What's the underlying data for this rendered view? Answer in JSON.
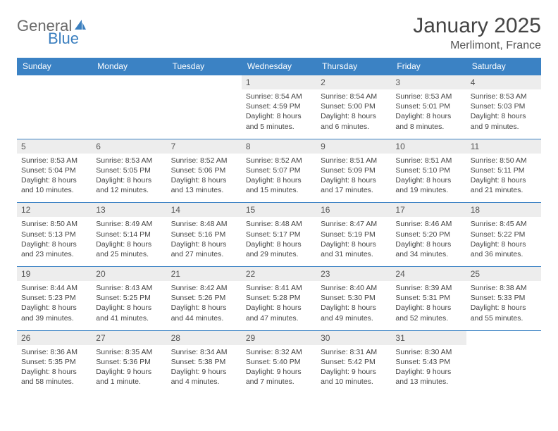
{
  "brand": {
    "part1": "General",
    "part2": "Blue"
  },
  "title": "January 2025",
  "location": "Merlimont, France",
  "colors": {
    "header_bg": "#3b82c4",
    "header_text": "#ffffff",
    "daynum_bg": "#ededed",
    "row_border": "#3b82c4",
    "logo_gray": "#6a6a6a",
    "logo_blue": "#3b7fbf"
  },
  "weekdays": [
    "Sunday",
    "Monday",
    "Tuesday",
    "Wednesday",
    "Thursday",
    "Friday",
    "Saturday"
  ],
  "weeks": [
    [
      null,
      null,
      null,
      {
        "n": "1",
        "sr": "Sunrise: 8:54 AM",
        "ss": "Sunset: 4:59 PM",
        "d1": "Daylight: 8 hours",
        "d2": "and 5 minutes."
      },
      {
        "n": "2",
        "sr": "Sunrise: 8:54 AM",
        "ss": "Sunset: 5:00 PM",
        "d1": "Daylight: 8 hours",
        "d2": "and 6 minutes."
      },
      {
        "n": "3",
        "sr": "Sunrise: 8:53 AM",
        "ss": "Sunset: 5:01 PM",
        "d1": "Daylight: 8 hours",
        "d2": "and 8 minutes."
      },
      {
        "n": "4",
        "sr": "Sunrise: 8:53 AM",
        "ss": "Sunset: 5:03 PM",
        "d1": "Daylight: 8 hours",
        "d2": "and 9 minutes."
      }
    ],
    [
      {
        "n": "5",
        "sr": "Sunrise: 8:53 AM",
        "ss": "Sunset: 5:04 PM",
        "d1": "Daylight: 8 hours",
        "d2": "and 10 minutes."
      },
      {
        "n": "6",
        "sr": "Sunrise: 8:53 AM",
        "ss": "Sunset: 5:05 PM",
        "d1": "Daylight: 8 hours",
        "d2": "and 12 minutes."
      },
      {
        "n": "7",
        "sr": "Sunrise: 8:52 AM",
        "ss": "Sunset: 5:06 PM",
        "d1": "Daylight: 8 hours",
        "d2": "and 13 minutes."
      },
      {
        "n": "8",
        "sr": "Sunrise: 8:52 AM",
        "ss": "Sunset: 5:07 PM",
        "d1": "Daylight: 8 hours",
        "d2": "and 15 minutes."
      },
      {
        "n": "9",
        "sr": "Sunrise: 8:51 AM",
        "ss": "Sunset: 5:09 PM",
        "d1": "Daylight: 8 hours",
        "d2": "and 17 minutes."
      },
      {
        "n": "10",
        "sr": "Sunrise: 8:51 AM",
        "ss": "Sunset: 5:10 PM",
        "d1": "Daylight: 8 hours",
        "d2": "and 19 minutes."
      },
      {
        "n": "11",
        "sr": "Sunrise: 8:50 AM",
        "ss": "Sunset: 5:11 PM",
        "d1": "Daylight: 8 hours",
        "d2": "and 21 minutes."
      }
    ],
    [
      {
        "n": "12",
        "sr": "Sunrise: 8:50 AM",
        "ss": "Sunset: 5:13 PM",
        "d1": "Daylight: 8 hours",
        "d2": "and 23 minutes."
      },
      {
        "n": "13",
        "sr": "Sunrise: 8:49 AM",
        "ss": "Sunset: 5:14 PM",
        "d1": "Daylight: 8 hours",
        "d2": "and 25 minutes."
      },
      {
        "n": "14",
        "sr": "Sunrise: 8:48 AM",
        "ss": "Sunset: 5:16 PM",
        "d1": "Daylight: 8 hours",
        "d2": "and 27 minutes."
      },
      {
        "n": "15",
        "sr": "Sunrise: 8:48 AM",
        "ss": "Sunset: 5:17 PM",
        "d1": "Daylight: 8 hours",
        "d2": "and 29 minutes."
      },
      {
        "n": "16",
        "sr": "Sunrise: 8:47 AM",
        "ss": "Sunset: 5:19 PM",
        "d1": "Daylight: 8 hours",
        "d2": "and 31 minutes."
      },
      {
        "n": "17",
        "sr": "Sunrise: 8:46 AM",
        "ss": "Sunset: 5:20 PM",
        "d1": "Daylight: 8 hours",
        "d2": "and 34 minutes."
      },
      {
        "n": "18",
        "sr": "Sunrise: 8:45 AM",
        "ss": "Sunset: 5:22 PM",
        "d1": "Daylight: 8 hours",
        "d2": "and 36 minutes."
      }
    ],
    [
      {
        "n": "19",
        "sr": "Sunrise: 8:44 AM",
        "ss": "Sunset: 5:23 PM",
        "d1": "Daylight: 8 hours",
        "d2": "and 39 minutes."
      },
      {
        "n": "20",
        "sr": "Sunrise: 8:43 AM",
        "ss": "Sunset: 5:25 PM",
        "d1": "Daylight: 8 hours",
        "d2": "and 41 minutes."
      },
      {
        "n": "21",
        "sr": "Sunrise: 8:42 AM",
        "ss": "Sunset: 5:26 PM",
        "d1": "Daylight: 8 hours",
        "d2": "and 44 minutes."
      },
      {
        "n": "22",
        "sr": "Sunrise: 8:41 AM",
        "ss": "Sunset: 5:28 PM",
        "d1": "Daylight: 8 hours",
        "d2": "and 47 minutes."
      },
      {
        "n": "23",
        "sr": "Sunrise: 8:40 AM",
        "ss": "Sunset: 5:30 PM",
        "d1": "Daylight: 8 hours",
        "d2": "and 49 minutes."
      },
      {
        "n": "24",
        "sr": "Sunrise: 8:39 AM",
        "ss": "Sunset: 5:31 PM",
        "d1": "Daylight: 8 hours",
        "d2": "and 52 minutes."
      },
      {
        "n": "25",
        "sr": "Sunrise: 8:38 AM",
        "ss": "Sunset: 5:33 PM",
        "d1": "Daylight: 8 hours",
        "d2": "and 55 minutes."
      }
    ],
    [
      {
        "n": "26",
        "sr": "Sunrise: 8:36 AM",
        "ss": "Sunset: 5:35 PM",
        "d1": "Daylight: 8 hours",
        "d2": "and 58 minutes."
      },
      {
        "n": "27",
        "sr": "Sunrise: 8:35 AM",
        "ss": "Sunset: 5:36 PM",
        "d1": "Daylight: 9 hours",
        "d2": "and 1 minute."
      },
      {
        "n": "28",
        "sr": "Sunrise: 8:34 AM",
        "ss": "Sunset: 5:38 PM",
        "d1": "Daylight: 9 hours",
        "d2": "and 4 minutes."
      },
      {
        "n": "29",
        "sr": "Sunrise: 8:32 AM",
        "ss": "Sunset: 5:40 PM",
        "d1": "Daylight: 9 hours",
        "d2": "and 7 minutes."
      },
      {
        "n": "30",
        "sr": "Sunrise: 8:31 AM",
        "ss": "Sunset: 5:42 PM",
        "d1": "Daylight: 9 hours",
        "d2": "and 10 minutes."
      },
      {
        "n": "31",
        "sr": "Sunrise: 8:30 AM",
        "ss": "Sunset: 5:43 PM",
        "d1": "Daylight: 9 hours",
        "d2": "and 13 minutes."
      },
      null
    ]
  ]
}
